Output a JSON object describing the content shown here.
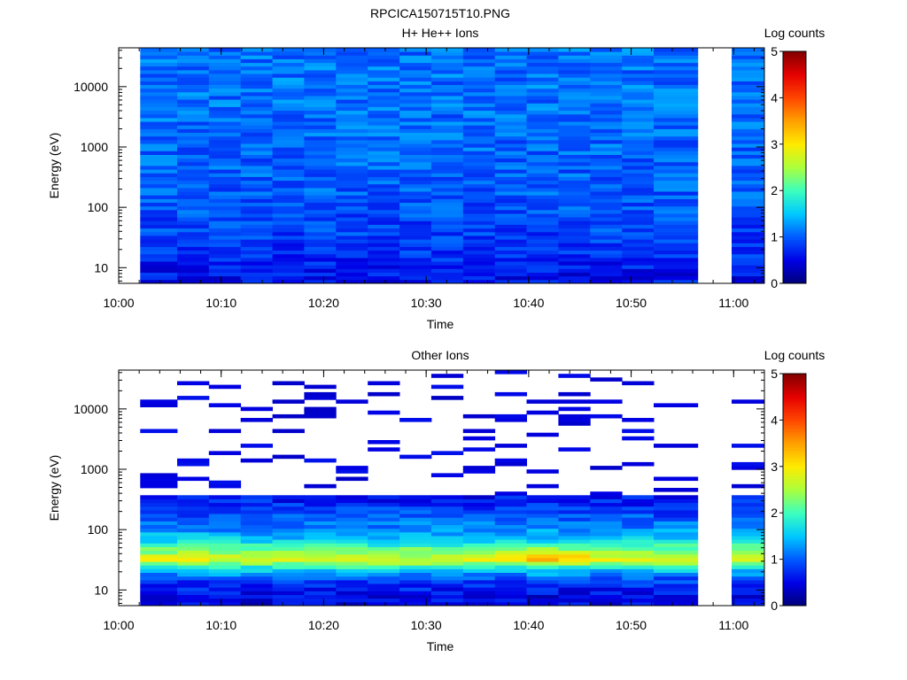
{
  "figure": {
    "title": "RPCICA150715T10.PNG"
  },
  "chart_data": [
    {
      "type": "heatmap",
      "title": "H+ He++ Ions",
      "xlabel": "Time",
      "ylabel": "Energy (eV)",
      "x_ticks": [
        "10:00",
        "10:10",
        "10:20",
        "10:30",
        "10:40",
        "10:50",
        "11:00"
      ],
      "x_range": [
        "10:00",
        "11:03"
      ],
      "y_scale": "log",
      "y_ticks": [
        "10",
        "100",
        "1000",
        "10000"
      ],
      "y_range": [
        5.5,
        44000
      ],
      "colorbar": {
        "label": "Log counts",
        "ticks": [
          "0",
          "1",
          "2",
          "3",
          "4",
          "5"
        ],
        "range": [
          0,
          5
        ]
      },
      "columns_start_min": [
        2.1,
        5.7,
        8.8,
        11.9,
        15.0,
        18.1,
        21.2,
        24.3,
        27.4,
        30.5,
        33.6,
        36.7,
        39.8,
        42.9,
        46.0,
        49.1,
        52.2,
        59.8
      ],
      "columns_end_min": [
        5.7,
        8.8,
        11.9,
        15.0,
        18.1,
        21.2,
        24.3,
        27.4,
        30.5,
        33.6,
        36.7,
        39.8,
        42.9,
        46.0,
        49.1,
        52.2,
        56.5,
        63.0
      ],
      "level_by_energy": [
        {
          "energy_eV": 8,
          "log_counts": 0.6
        },
        {
          "energy_eV": 20,
          "log_counts": 0.8
        },
        {
          "energy_eV": 60,
          "log_counts": 0.9
        },
        {
          "energy_eV": 200,
          "log_counts": 1.0
        },
        {
          "energy_eV": 1000,
          "log_counts": 1.05
        },
        {
          "energy_eV": 10000,
          "log_counts": 1.1
        },
        {
          "energy_eV": 40000,
          "log_counts": 1.1
        }
      ]
    },
    {
      "type": "heatmap",
      "title": "Other Ions",
      "xlabel": "Time",
      "ylabel": "Energy (eV)",
      "x_ticks": [
        "10:00",
        "10:10",
        "10:20",
        "10:30",
        "10:40",
        "10:50",
        "11:00"
      ],
      "x_range": [
        "10:00",
        "11:03"
      ],
      "y_scale": "log",
      "y_ticks": [
        "10",
        "100",
        "1000",
        "10000"
      ],
      "y_range": [
        5.5,
        44000
      ],
      "colorbar": {
        "label": "Log counts",
        "ticks": [
          "0",
          "1",
          "2",
          "3",
          "4",
          "5"
        ],
        "range": [
          0,
          5
        ]
      },
      "columns_start_min": [
        2.1,
        5.7,
        8.8,
        11.9,
        15.0,
        18.1,
        21.2,
        24.3,
        27.4,
        30.5,
        33.6,
        36.7,
        39.8,
        42.9,
        46.0,
        49.1,
        52.2,
        59.8
      ],
      "columns_end_min": [
        5.7,
        8.8,
        11.9,
        15.0,
        18.1,
        21.2,
        24.3,
        27.4,
        30.5,
        33.6,
        36.7,
        39.8,
        42.9,
        46.0,
        49.1,
        52.2,
        56.5,
        63.0
      ],
      "level_by_energy": [
        {
          "energy_eV": 8,
          "log_counts": 0.5
        },
        {
          "energy_eV": 15,
          "log_counts": 0.9
        },
        {
          "energy_eV": 22,
          "log_counts": 1.6
        },
        {
          "energy_eV": 32,
          "log_counts": 2.8
        },
        {
          "energy_eV": 45,
          "log_counts": 2.3
        },
        {
          "energy_eV": 70,
          "log_counts": 1.5
        },
        {
          "energy_eV": 150,
          "log_counts": 1.0
        },
        {
          "energy_eV": 350,
          "log_counts": 0.6
        }
      ],
      "peak": {
        "time": "10:42",
        "energy_eV": 35,
        "log_counts": 3.6
      },
      "sparse_above_eV": 350
    }
  ]
}
